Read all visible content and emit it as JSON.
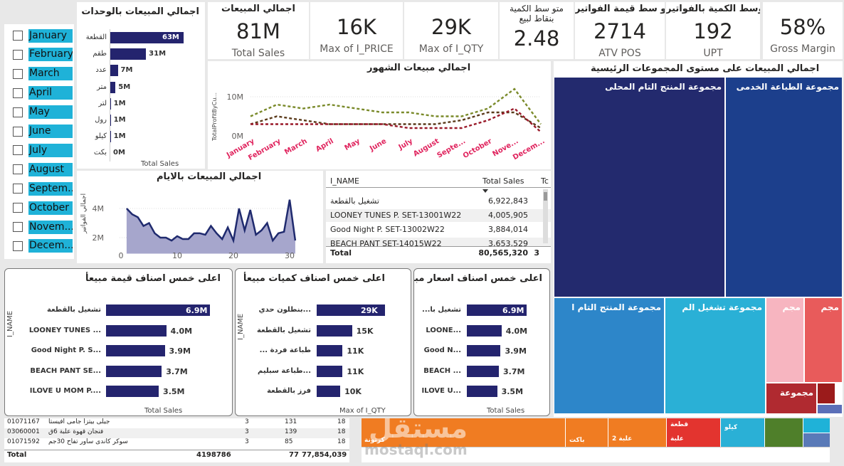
{
  "months_slicer": {
    "items": [
      "January",
      "February",
      "March",
      "April",
      "May",
      "June",
      "July",
      "August",
      "Septem...",
      "October",
      "Novem...",
      "Decem..."
    ]
  },
  "units_chart": {
    "title": "اجمالي المبيعات بالوحدات",
    "xlabel": "Total Sales",
    "categories": [
      "القطعة",
      "طقم",
      "عدد",
      "متر",
      "لتر",
      "رول",
      "كيلو",
      "بكت"
    ],
    "values": [
      63,
      31,
      7,
      5,
      1,
      1,
      1,
      0
    ],
    "labels": [
      "63M",
      "31M",
      "7M",
      "5M",
      "1M",
      "1M",
      "1M",
      "0M"
    ]
  },
  "kpis": [
    {
      "top": "اجمالي المبيعات",
      "value": "81M",
      "label": "Total Sales"
    },
    {
      "top": "",
      "value": "16K",
      "label": "Max of I_PRICE"
    },
    {
      "top": "",
      "value": "29K",
      "label": "Max of I_QTY"
    },
    {
      "top": "متو سط الكمية بنقاط لبيع",
      "value": "2.48",
      "label": ""
    },
    {
      "top": "متو سط قيمة الفواتير",
      "value": "2714",
      "label": "ATV POS"
    },
    {
      "top": "متوسط الكمية بالفواتير",
      "value": "192",
      "label": "UPT"
    },
    {
      "top": "",
      "value": "58%",
      "label": "Gross Margin"
    }
  ],
  "monthly_chart": {
    "title": "اجمالي مبيعات الشهور",
    "ylabel": "TotalProfitByCu...",
    "y_ticks": [
      "10M",
      "0M"
    ],
    "categories": [
      "January",
      "February",
      "March",
      "April",
      "May",
      "June",
      "July",
      "August",
      "Septe...",
      "October",
      "Nove...",
      "Decem..."
    ],
    "series": [
      {
        "color": "#7a8a2a",
        "values": [
          5,
          8,
          7,
          8,
          7,
          6,
          6,
          5,
          5,
          7,
          12,
          3
        ]
      },
      {
        "color": "#5a3a1a",
        "values": [
          3,
          5,
          4,
          3,
          3,
          3,
          3,
          3,
          4,
          6,
          6,
          2
        ]
      },
      {
        "color": "#9a1a2a",
        "values": [
          3,
          3,
          3,
          3,
          3,
          3,
          2,
          2,
          2,
          4,
          7,
          1
        ]
      }
    ]
  },
  "category_treemap": {
    "title": "اجمالي المبيعات على مستوى المجموعات الرئيسية",
    "tiles": [
      "مجموعة المنتج التام المحلى",
      "مجموعة الطباعة الخدمى",
      "مجموعة المنتج التام ا",
      "مجموعة تشغيل الم",
      "مجم",
      "مجم",
      "مجموعة"
    ],
    "colors": [
      "#232a6e",
      "#1c3f8c",
      "#2d86c9",
      "#2ab0d6",
      "#f7b5c0",
      "#e85b5b",
      "#b02a30",
      "#9b1b1b",
      "#5b6fb8"
    ]
  },
  "daily_chart": {
    "title": "اجمالي المبيعات بالايام",
    "ylabel": "اجمالي الفواتير",
    "y_ticks": [
      "4M",
      "2M"
    ],
    "x_ticks": [
      "0",
      "10",
      "20",
      "30"
    ],
    "x": [
      1,
      2,
      3,
      4,
      5,
      6,
      7,
      8,
      9,
      10,
      11,
      12,
      13,
      14,
      15,
      16,
      17,
      18,
      19,
      20,
      21,
      22,
      23,
      24,
      25,
      26,
      27,
      28,
      29,
      30,
      31
    ],
    "values": [
      4.0,
      3.6,
      3.4,
      2.8,
      3.0,
      2.3,
      2.0,
      2.0,
      1.8,
      2.1,
      1.9,
      1.9,
      2.3,
      2.3,
      2.2,
      2.8,
      2.3,
      1.9,
      2.7,
      1.8,
      4.0,
      2.5,
      3.9,
      2.2,
      2.5,
      3.0,
      1.8,
      2.3,
      2.4,
      4.6,
      1.8
    ]
  },
  "item_table": {
    "headers": [
      "I_NAME",
      "Total Sales",
      "Tc"
    ],
    "rows": [
      [
        "تشغيل بالقطعة",
        "6,922,843"
      ],
      [
        "LOONEY TUNES P. SET-13001W22",
        "4,005,905"
      ],
      [
        "Good Night P. SET-13002W22",
        "3,884,014"
      ],
      [
        "BEACH PANT SET-14015W22",
        "3,653,529"
      ]
    ],
    "total_label": "Total",
    "total_value": "80,565,320",
    "total_extra": "3"
  },
  "top5_value": {
    "title": "اعلى خمس اصناف قيمة مبيعأ",
    "xlabel": "Total Sales",
    "ylabel": "I_NAME",
    "categories": [
      "تشغيل بالقطعة",
      "LOONEY TUNES ...",
      "Good Night P. S...",
      "BEACH PANT SE...",
      "ILOVE U MOM P...."
    ],
    "values": [
      6.9,
      4.0,
      3.9,
      3.7,
      3.5
    ],
    "labels": [
      "6.9M",
      "4.0M",
      "3.9M",
      "3.7M",
      "3.5M"
    ]
  },
  "top5_qty": {
    "title": "اعلى خمس اصناف كميات مبيعأ",
    "xlabel": "Max of I_QTY",
    "ylabel": "I_NAME",
    "categories": [
      "بنطلون حدي...",
      "تشغيل بالقطعة",
      "... طباعة فردة",
      "طباعة سبليم...",
      "فرز بالقطعة"
    ],
    "values": [
      29,
      15,
      11,
      11,
      10
    ],
    "labels": [
      "29K",
      "15K",
      "11K",
      "11K",
      "10K"
    ]
  },
  "top5_price": {
    "title": "اعلى خمس اصناف اسعار مبيعأ",
    "xlabel": "Total Sales",
    "categories": [
      "...تشغيل با",
      "LOONE...",
      "Good N...",
      "BEACH ...",
      "ILOVE U..."
    ],
    "values": [
      6.9,
      4.0,
      3.9,
      3.7,
      3.5
    ],
    "labels": [
      "6.9M",
      "4.0M",
      "3.9M",
      "3.7M",
      "3.5M"
    ]
  },
  "bottom_table": {
    "rows": [
      [
        "01071167",
        "جيلى بيتزا جامى أفيستا",
        "3",
        "131",
        "18"
      ],
      [
        "03060001",
        "فنجان قهوة علبة 6ق",
        "3",
        "139",
        "18"
      ],
      [
        "01071592",
        "سوكر كاندى ساور تفاح 30جم",
        "3",
        "85",
        "18"
      ]
    ],
    "total": [
      "Total",
      "4198786",
      "77",
      "77,854,039"
    ]
  },
  "bottom_treemap": {
    "tiles": [
      "كرتونة",
      "باكت",
      "علبة 2",
      "قطعة",
      "علبة",
      "كيلو"
    ],
    "watermark": "mostaql.com",
    "watermark_ar": "مستقل"
  }
}
